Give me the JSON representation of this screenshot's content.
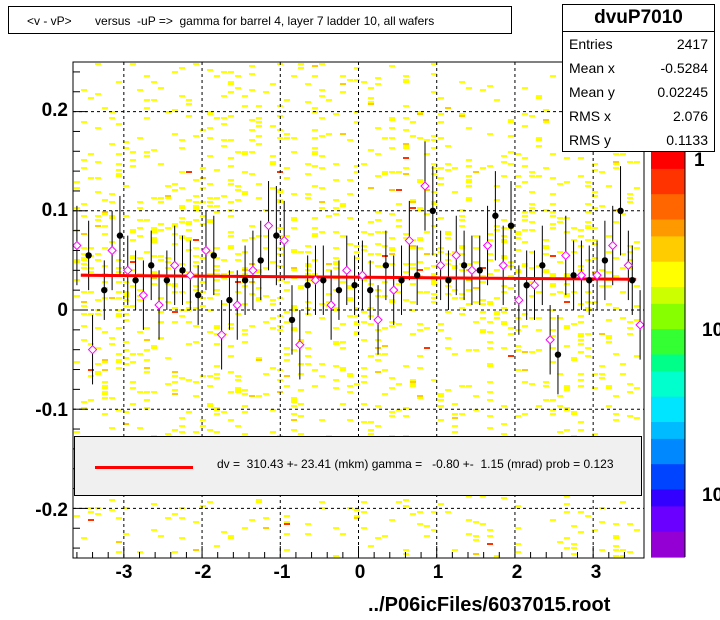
{
  "title": "<v - vP>       versus  -uP =>  gamma for barrel 4, layer 7 ladder 10, all wafers",
  "stats": {
    "name": "dvuP7010",
    "rows": [
      {
        "label": "Entries",
        "value": "2417"
      },
      {
        "label": "Mean x",
        "value": "-0.5284"
      },
      {
        "label": "Mean y",
        "value": "0.02245"
      },
      {
        "label": "RMS x",
        "value": "2.076"
      },
      {
        "label": "RMS y",
        "value": "0.1133"
      }
    ]
  },
  "fit_text": "dv =  310.43 +- 23.41 (mkm) gamma =   -0.80 +-  1.15 (mrad) prob = 0.123",
  "footer": "../P06icFiles/6037015.root",
  "colors": {
    "fit_line": "#ff0000",
    "black_points": "#000000",
    "open_points": "#ff00ff",
    "histogram_low": "#ffff00",
    "histogram_mid": "#ffcc00",
    "histogram_high": "#ff3300"
  },
  "chart_data": {
    "type": "scatter",
    "xlim": [
      -3.65,
      3.65
    ],
    "ylim": [
      -0.25,
      0.25
    ],
    "x_ticks": [
      -3,
      -2,
      -1,
      0,
      1,
      2,
      3
    ],
    "x_tick_labels": [
      "-3",
      "-2",
      "-1",
      "0",
      "1",
      "2",
      "3"
    ],
    "y_ticks": [
      -0.2,
      -0.1,
      0,
      0.1,
      0.2
    ],
    "y_tick_labels": [
      "-0.2",
      "-0.1",
      "0",
      "0.1",
      "0.2"
    ],
    "z_axis_labels": [
      "1",
      "10",
      "10"
    ],
    "grid": true,
    "fit": {
      "x": [
        -3.55,
        3.55
      ],
      "y": [
        0.035,
        0.031
      ]
    },
    "series": [
      {
        "marker": "filled-circle",
        "x": [
          -3.45,
          -3.25,
          -3.05,
          -2.85,
          -2.65,
          -2.45,
          -2.25,
          -2.05,
          -1.85,
          -1.65,
          -1.45,
          -1.25,
          -1.05,
          -0.85,
          -0.65,
          -0.45,
          -0.25,
          -0.05,
          0.15,
          0.35,
          0.55,
          0.75,
          0.95,
          1.15,
          1.35,
          1.55,
          1.75,
          1.95,
          2.15,
          2.35,
          2.55,
          2.75,
          2.95,
          3.15,
          3.35,
          3.5
        ],
        "y": [
          0.055,
          0.02,
          0.075,
          0.03,
          0.045,
          0.03,
          0.04,
          0.015,
          0.055,
          0.01,
          0.03,
          0.05,
          0.075,
          -0.01,
          0.025,
          0.03,
          0.02,
          0.025,
          0.02,
          0.045,
          0.03,
          0.035,
          0.1,
          0.03,
          0.045,
          0.04,
          0.095,
          0.085,
          0.025,
          0.045,
          -0.045,
          0.035,
          0.03,
          0.05,
          0.1,
          0.03
        ],
        "err": [
          0.035,
          0.03,
          0.04,
          0.03,
          0.035,
          0.03,
          0.035,
          0.03,
          0.04,
          0.03,
          0.035,
          0.04,
          0.05,
          0.035,
          0.03,
          0.035,
          0.03,
          0.03,
          0.03,
          0.035,
          0.035,
          0.03,
          0.045,
          0.03,
          0.035,
          0.035,
          0.045,
          0.045,
          0.035,
          0.04,
          0.04,
          0.035,
          0.035,
          0.04,
          0.045,
          0.035
        ]
      },
      {
        "marker": "open-diamond",
        "x": [
          -3.6,
          -3.4,
          -3.15,
          -2.95,
          -2.75,
          -2.55,
          -2.35,
          -2.15,
          -1.95,
          -1.75,
          -1.55,
          -1.35,
          -1.15,
          -0.95,
          -0.75,
          -0.55,
          -0.35,
          -0.15,
          0.05,
          0.25,
          0.45,
          0.65,
          0.85,
          1.05,
          1.25,
          1.45,
          1.65,
          1.85,
          2.05,
          2.25,
          2.45,
          2.65,
          2.85,
          3.05,
          3.25,
          3.45,
          3.6
        ],
        "y": [
          0.065,
          -0.04,
          0.06,
          0.04,
          0.015,
          0.005,
          0.045,
          0.035,
          0.06,
          -0.025,
          0.005,
          0.04,
          0.085,
          0.07,
          -0.035,
          0.03,
          0.005,
          0.04,
          0.035,
          -0.01,
          0.02,
          0.07,
          0.125,
          0.045,
          0.055,
          0.04,
          0.065,
          0.045,
          0.01,
          0.025,
          -0.03,
          0.055,
          0.035,
          0.035,
          0.065,
          0.045,
          -0.015
        ],
        "err": [
          0.04,
          0.035,
          0.04,
          0.035,
          0.035,
          0.035,
          0.04,
          0.035,
          0.04,
          0.035,
          0.035,
          0.04,
          0.045,
          0.04,
          0.035,
          0.035,
          0.035,
          0.035,
          0.035,
          0.035,
          0.035,
          0.04,
          0.045,
          0.035,
          0.04,
          0.035,
          0.04,
          0.04,
          0.035,
          0.035,
          0.035,
          0.04,
          0.035,
          0.035,
          0.04,
          0.035,
          0.035
        ]
      }
    ]
  }
}
